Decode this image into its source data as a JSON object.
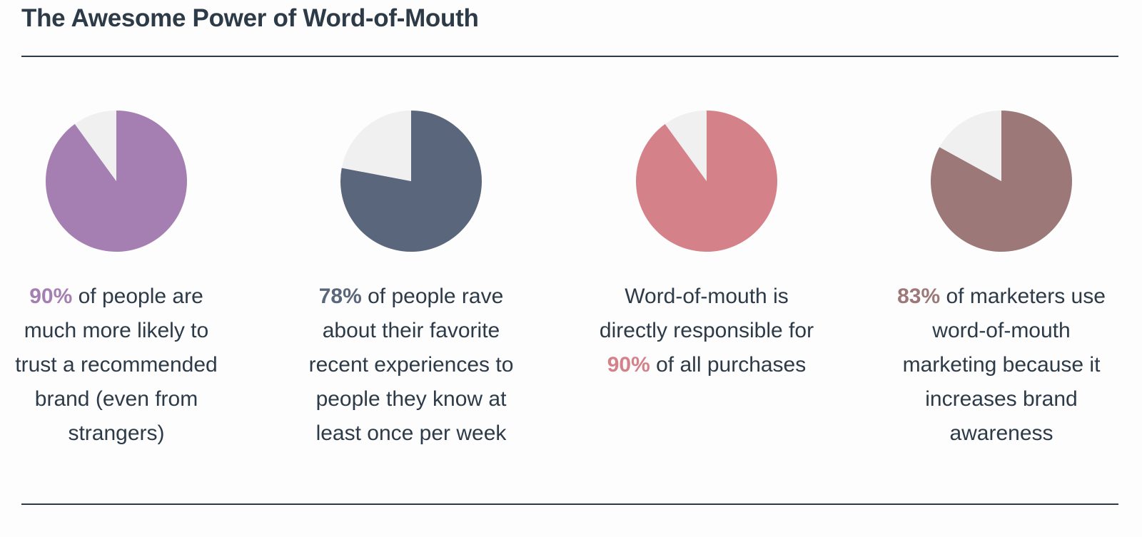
{
  "title": "The Awesome Power of Word-of-Mouth",
  "chart_data": [
    {
      "type": "pie",
      "values": [
        90,
        10
      ],
      "value_labels": [
        "90%",
        null
      ],
      "colors": [
        "#a57fb2",
        "#f0f0f0"
      ],
      "caption_after": "of people are much more likely to trust a recommended brand (even from strangers)"
    },
    {
      "type": "pie",
      "values": [
        78,
        22
      ],
      "value_labels": [
        "78%",
        null
      ],
      "colors": [
        "#5a667b",
        "#f0f0f0"
      ],
      "caption_after": "of people rave about their favorite recent experiences to people they know at least once per week"
    },
    {
      "type": "pie",
      "values": [
        90,
        10
      ],
      "value_labels": [
        "90%",
        null
      ],
      "colors": [
        "#d4818a",
        "#f0f0f0"
      ],
      "caption_before": "Word-of-mouth is directly responsible for",
      "caption_after": "of all purchases"
    },
    {
      "type": "pie",
      "values": [
        83,
        17
      ],
      "value_labels": [
        "83%",
        null
      ],
      "colors": [
        "#9d7879",
        "#f0f0f0"
      ],
      "caption_after": "of marketers use word-of-mouth marketing because it increases brand awareness"
    }
  ]
}
